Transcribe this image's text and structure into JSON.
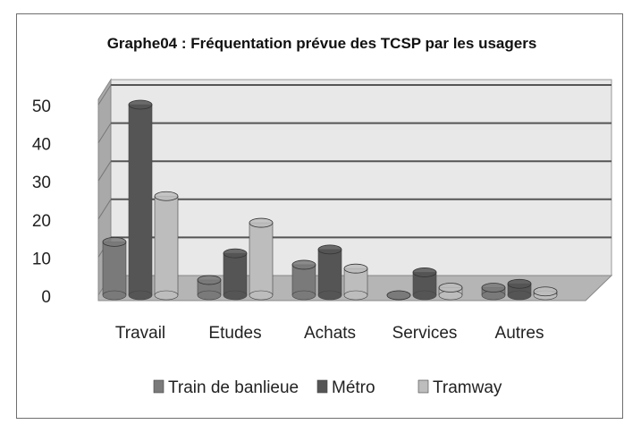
{
  "chart_data": {
    "type": "bar",
    "title": "Graphe04 : Fréquentation prévue des TCSP par les usagers",
    "xlabel": "",
    "ylabel": "",
    "ylim": [
      0,
      50
    ],
    "yticks": [
      0,
      10,
      20,
      30,
      40,
      50
    ],
    "grid": true,
    "legend_position": "bottom",
    "categories": [
      "Travail",
      "Etudes",
      "Achats",
      "Services",
      "Autres"
    ],
    "series": [
      {
        "name": "Train de banlieue",
        "color": "#7a7a7a",
        "values": [
          14,
          4,
          8,
          0,
          2
        ]
      },
      {
        "name": "Métro",
        "color": "#555555",
        "values": [
          50,
          11,
          12,
          6,
          3
        ]
      },
      {
        "name": "Tramway",
        "color": "#bdbdbd",
        "values": [
          26,
          19,
          7,
          2,
          1
        ]
      }
    ]
  }
}
